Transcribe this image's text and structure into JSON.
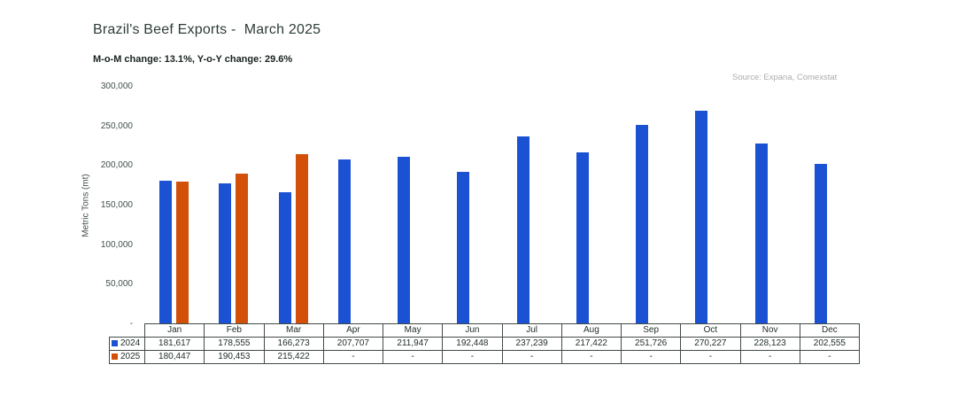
{
  "header": {
    "title": "Brazil's Beef Exports -  March 2025",
    "subtitle": "M-o-M change: 13.1%, Y-o-Y change: 29.6%",
    "source": "Source: Expana, Comexstat"
  },
  "chart_data": {
    "type": "bar",
    "title": "Brazil's Beef Exports - March 2025",
    "subtitle": "M-o-M change: 13.1%, Y-o-Y change: 29.6%",
    "source": "Source: Expana, Comexstat",
    "categories": [
      "Jan",
      "Feb",
      "Mar",
      "Apr",
      "May",
      "Jun",
      "Jul",
      "Aug",
      "Sep",
      "Oct",
      "Nov",
      "Dec"
    ],
    "series": [
      {
        "name": "2024",
        "color": "#1B51D3",
        "values": [
          181617,
          178555,
          166273,
          207707,
          211947,
          192448,
          237239,
          217422,
          251726,
          270227,
          228123,
          202555
        ]
      },
      {
        "name": "2025",
        "color": "#D2500A",
        "values": [
          180447,
          190453,
          215422,
          null,
          null,
          null,
          null,
          null,
          null,
          null,
          null,
          null
        ]
      }
    ],
    "ylabel": "Metric Tons (mt)",
    "ylim": [
      0,
      300000
    ],
    "ytick_step": 50000,
    "zero_tick_label": "-",
    "null_cell_label": "-",
    "grid": false,
    "legend_position": "table-rows-left"
  }
}
